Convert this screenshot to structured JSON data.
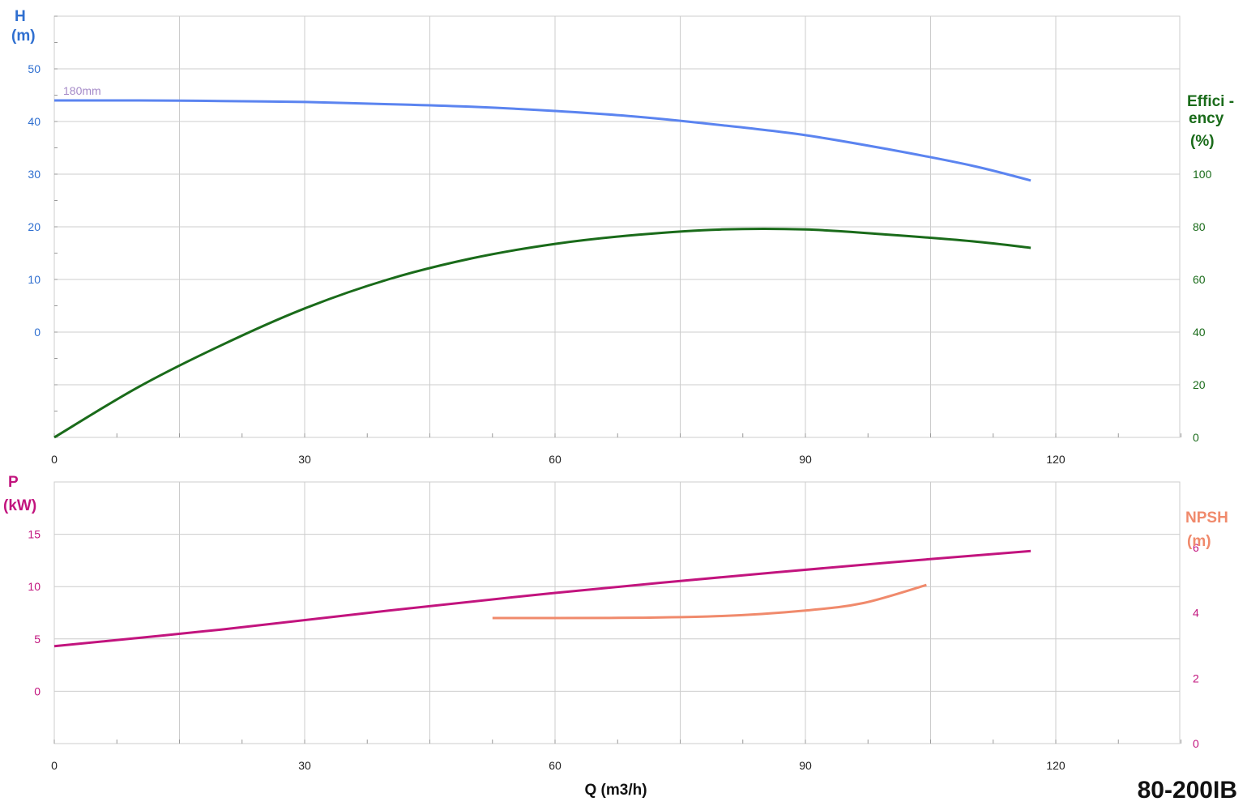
{
  "colors": {
    "head": "#5b84f0",
    "head_axis": "#2f6fd0",
    "efficiency": "#1a6b1a",
    "power": "#c2147e",
    "npsh": "#f08a6c",
    "grid": "#cccccc",
    "diameter_label": "#a58ac8"
  },
  "model": "80-200IB",
  "x_axis": {
    "label": "Q (m3/h)",
    "ticks": [
      "0",
      "30",
      "60",
      "90",
      "120"
    ],
    "range": [
      0,
      135
    ]
  },
  "top_chart": {
    "left_axis": {
      "title_line1": "H",
      "title_line2": "(m)",
      "ticks": [
        "0",
        "10",
        "20",
        "30",
        "40",
        "50"
      ]
    },
    "right_axis": {
      "title_line1": "Effici -",
      "title_line2": "ency",
      "title_line3": "(%)",
      "ticks": [
        "0",
        "20",
        "40",
        "60",
        "80",
        "100"
      ]
    },
    "curve_label": "180mm"
  },
  "bottom_chart": {
    "left_axis": {
      "title_line1": "P",
      "title_line2": "(kW)",
      "ticks": [
        "0",
        "5",
        "10",
        "15"
      ]
    },
    "right_axis": {
      "title_line1": "NPSH",
      "title_line2": "(m)",
      "ticks": [
        "0",
        "2",
        "4",
        "6"
      ]
    }
  },
  "chart_data": [
    {
      "type": "line",
      "title": "",
      "xlabel": "Q (m3/h)",
      "xlim": [
        0,
        135
      ],
      "series": [
        {
          "name": "180mm",
          "axis": "H (m)",
          "ylim": [
            -20,
            60
          ],
          "points": [
            [
              0,
              44
            ],
            [
              10,
              44
            ],
            [
              20,
              43.9
            ],
            [
              30,
              43.7
            ],
            [
              40,
              43.3
            ],
            [
              50,
              42.8
            ],
            [
              60,
              42
            ],
            [
              70,
              40.9
            ],
            [
              80,
              39.3
            ],
            [
              90,
              37.4
            ],
            [
              100,
              34.7
            ],
            [
              110,
              31.6
            ],
            [
              117,
              28.8
            ]
          ]
        },
        {
          "axis": "Efficiency (%)",
          "ylim": [
            0,
            160
          ],
          "points": [
            [
              0,
              0
            ],
            [
              10,
              19
            ],
            [
              20,
              35
            ],
            [
              30,
              49
            ],
            [
              40,
              60
            ],
            [
              50,
              68
            ],
            [
              60,
              73.5
            ],
            [
              70,
              77
            ],
            [
              80,
              79
            ],
            [
              90,
              79
            ],
            [
              100,
              77
            ],
            [
              110,
              74.5
            ],
            [
              117,
              72
            ]
          ]
        }
      ]
    },
    {
      "type": "line",
      "title": "",
      "xlabel": "Q (m3/h)",
      "xlim": [
        0,
        135
      ],
      "series": [
        {
          "axis": "P (kW)",
          "ylim": [
            -5,
            20
          ],
          "points": [
            [
              0,
              4.3
            ],
            [
              20,
              5.9
            ],
            [
              40,
              7.7
            ],
            [
              60,
              9.4
            ],
            [
              80,
              10.9
            ],
            [
              100,
              12.3
            ],
            [
              117,
              13.4
            ]
          ]
        },
        {
          "axis": "NPSH (m)",
          "ylim": [
            0,
            8
          ],
          "points": [
            [
              52.5,
              3.84
            ],
            [
              60,
              3.84
            ],
            [
              70,
              3.85
            ],
            [
              80,
              3.9
            ],
            [
              90,
              4.07
            ],
            [
              97,
              4.3
            ],
            [
              104.5,
              4.85
            ]
          ]
        }
      ]
    }
  ]
}
